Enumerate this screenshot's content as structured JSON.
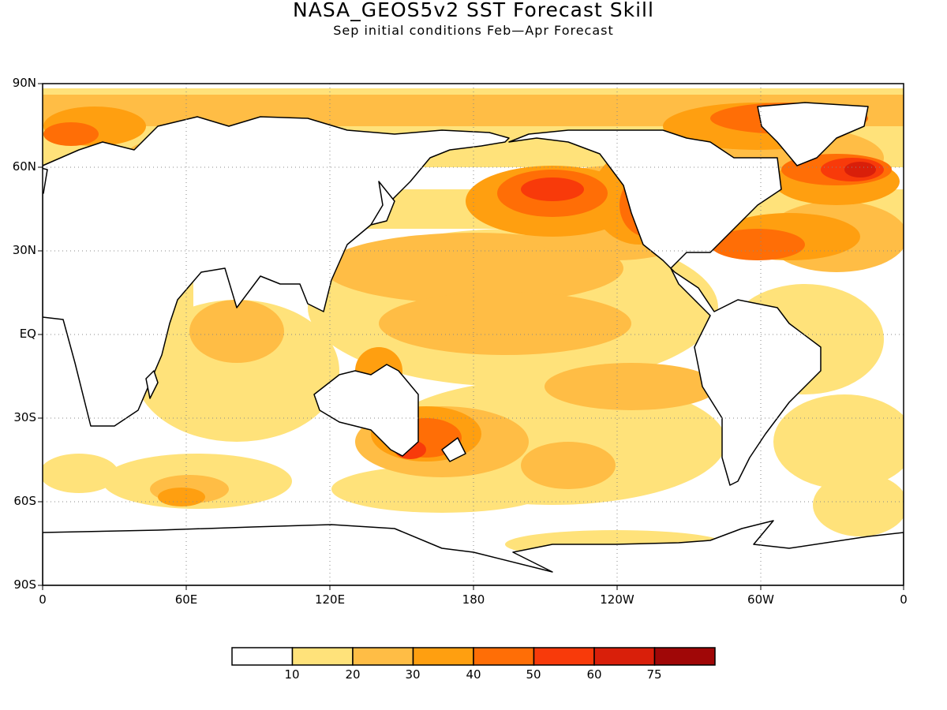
{
  "title": "NASA_GEOS5v2 SST Forecast Skill",
  "subtitle": "Sep initial conditions  Feb—Apr Forecast",
  "lat_labels": [
    "90N",
    "60N",
    "30N",
    "EQ",
    "30S",
    "60S",
    "90S"
  ],
  "lon_labels": [
    "0",
    "60E",
    "120E",
    "180",
    "120W",
    "60W",
    "0"
  ],
  "colorbar": {
    "labels": [
      "10",
      "20",
      "30",
      "40",
      "50",
      "60",
      "75"
    ],
    "colors": [
      "#ffffff",
      "#ffe27a",
      "#ffbd45",
      "#ff9f10",
      "#ff6e06",
      "#f83a0a",
      "#d91f0a",
      "#a00707"
    ]
  },
  "map": {
    "projection": "cylindrical equidistant",
    "lon_range": [
      0,
      360
    ],
    "lat_range": [
      -90,
      90
    ],
    "grid": "dotted",
    "ocean_color_classes": [
      "<10",
      "10-20",
      "20-30",
      "30-40",
      "40-50",
      "50-60",
      "60-75",
      ">75"
    ]
  }
}
